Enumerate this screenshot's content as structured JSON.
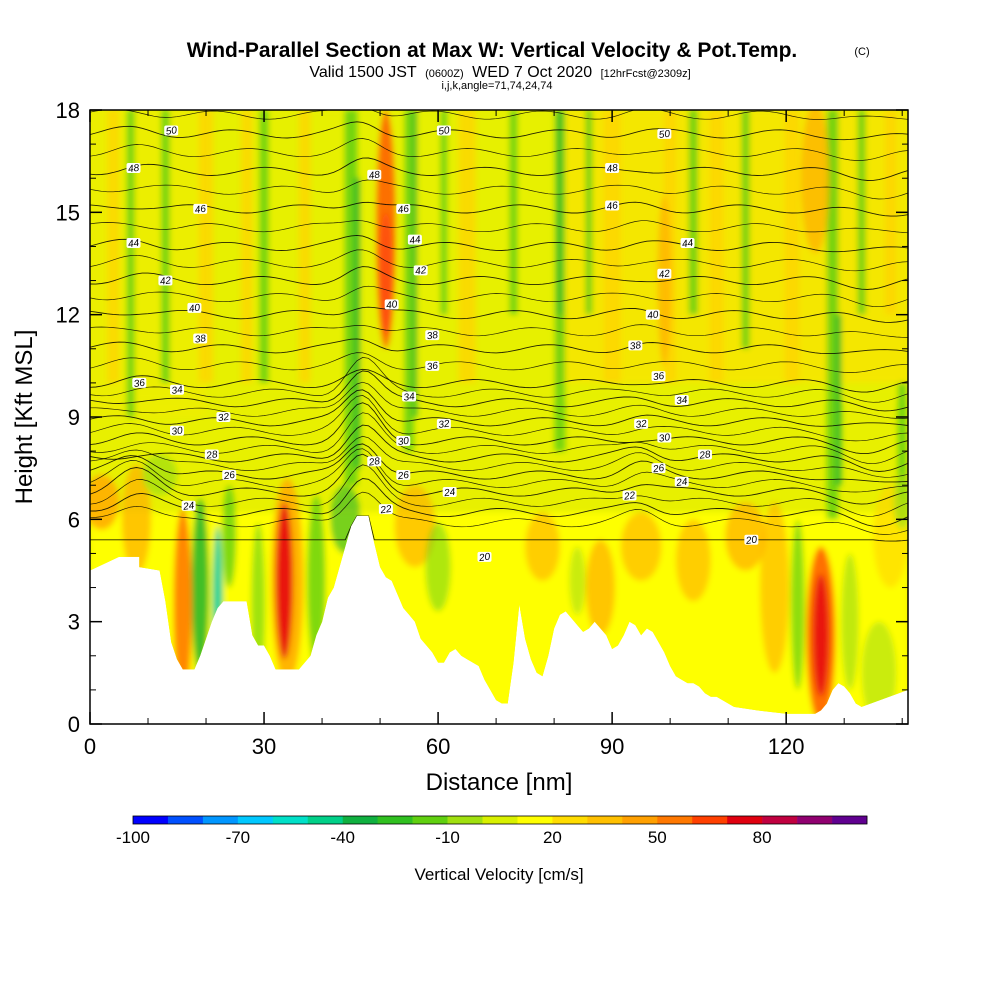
{
  "chart_data": {
    "type": "contour",
    "title": {
      "main": "Wind-Parallel Section at Max W: Vertical Velocity & Pot.Temp.",
      "copyright": "(C)",
      "valid_prefix": "Valid 1500 JST",
      "valid_utc": "(0600Z)",
      "valid_date": "WED 7 Oct 2020",
      "forecast": "[12hrFcst@2309z]",
      "indices": "i,j,k,angle=71,74,24,74"
    },
    "xlabel": "Distance [nm]",
    "ylabel": "Height [Kft MSL]",
    "xlim": [
      0,
      141
    ],
    "ylim": [
      0,
      18
    ],
    "x_ticks": [
      "0",
      "30",
      "60",
      "90",
      "120"
    ],
    "y_ticks": [
      "0",
      "3",
      "6",
      "9",
      "12",
      "15",
      "18"
    ],
    "colorbar": {
      "label": "Vertical Velocity [cm/s]",
      "tick_labels": [
        "-100",
        "-70",
        "-40",
        "-10",
        "20",
        "50",
        "80"
      ],
      "colors": [
        "#0000ff",
        "#0050ff",
        "#0096ff",
        "#00c8ff",
        "#00e0c8",
        "#00d088",
        "#10b040",
        "#30c020",
        "#60d010",
        "#a0e010",
        "#d8f000",
        "#ffff00",
        "#ffdc00",
        "#ffc000",
        "#ffa000",
        "#ff7800",
        "#ff4000",
        "#e00010",
        "#c00040",
        "#900070",
        "#600090"
      ]
    },
    "theta_contour_labels": [
      {
        "x": 14,
        "y": 17.4,
        "t": "50"
      },
      {
        "x": 61,
        "y": 17.4,
        "t": "50"
      },
      {
        "x": 99,
        "y": 17.3,
        "t": "50"
      },
      {
        "x": 7.5,
        "y": 16.3,
        "t": "48"
      },
      {
        "x": 49,
        "y": 16.1,
        "t": "48"
      },
      {
        "x": 90,
        "y": 16.3,
        "t": "48"
      },
      {
        "x": 19,
        "y": 15.1,
        "t": "46"
      },
      {
        "x": 54,
        "y": 15.1,
        "t": "46"
      },
      {
        "x": 90,
        "y": 15.2,
        "t": "46"
      },
      {
        "x": 7.5,
        "y": 14.1,
        "t": "44"
      },
      {
        "x": 56,
        "y": 14.2,
        "t": "44"
      },
      {
        "x": 103,
        "y": 14.1,
        "t": "44"
      },
      {
        "x": 13,
        "y": 13.0,
        "t": "42"
      },
      {
        "x": 57,
        "y": 13.3,
        "t": "42"
      },
      {
        "x": 99,
        "y": 13.2,
        "t": "42"
      },
      {
        "x": 18,
        "y": 12.2,
        "t": "40"
      },
      {
        "x": 52,
        "y": 12.3,
        "t": "40"
      },
      {
        "x": 97,
        "y": 12.0,
        "t": "40"
      },
      {
        "x": 19,
        "y": 11.3,
        "t": "38"
      },
      {
        "x": 59,
        "y": 11.4,
        "t": "38"
      },
      {
        "x": 94,
        "y": 11.1,
        "t": "38"
      },
      {
        "x": 8.5,
        "y": 10.0,
        "t": "36"
      },
      {
        "x": 59,
        "y": 10.5,
        "t": "36"
      },
      {
        "x": 98,
        "y": 10.2,
        "t": "36"
      },
      {
        "x": 15,
        "y": 9.8,
        "t": "34"
      },
      {
        "x": 55,
        "y": 9.6,
        "t": "34"
      },
      {
        "x": 102,
        "y": 9.5,
        "t": "34"
      },
      {
        "x": 23,
        "y": 9.0,
        "t": "32"
      },
      {
        "x": 61,
        "y": 8.8,
        "t": "32"
      },
      {
        "x": 95,
        "y": 8.8,
        "t": "32"
      },
      {
        "x": 15,
        "y": 8.6,
        "t": "30"
      },
      {
        "x": 54,
        "y": 8.3,
        "t": "30"
      },
      {
        "x": 99,
        "y": 8.4,
        "t": "30"
      },
      {
        "x": 21,
        "y": 7.9,
        "t": "28"
      },
      {
        "x": 49,
        "y": 7.7,
        "t": "28"
      },
      {
        "x": 106,
        "y": 7.9,
        "t": "28"
      },
      {
        "x": 24,
        "y": 7.3,
        "t": "26"
      },
      {
        "x": 54,
        "y": 7.3,
        "t": "26"
      },
      {
        "x": 98,
        "y": 7.5,
        "t": "26"
      },
      {
        "x": 17,
        "y": 6.4,
        "t": "24"
      },
      {
        "x": 62,
        "y": 6.8,
        "t": "24"
      },
      {
        "x": 102,
        "y": 7.1,
        "t": "24"
      },
      {
        "x": 51,
        "y": 6.3,
        "t": "22"
      },
      {
        "x": 93,
        "y": 6.7,
        "t": "22"
      },
      {
        "x": 68,
        "y": 4.9,
        "t": "20"
      },
      {
        "x": 114,
        "y": 5.4,
        "t": "20"
      }
    ]
  }
}
